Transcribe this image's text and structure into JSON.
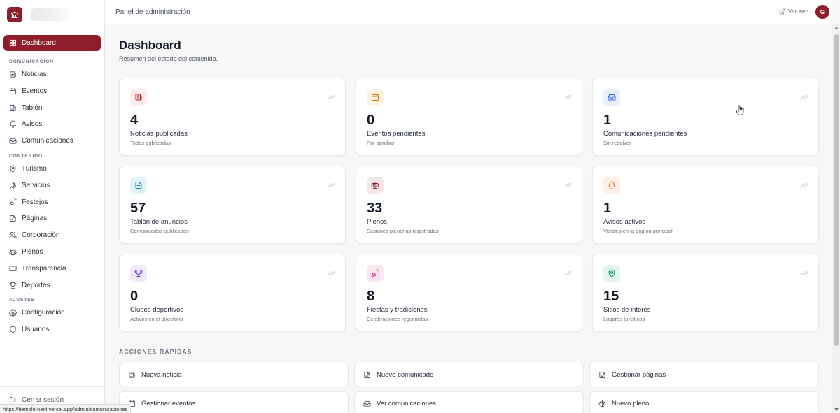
{
  "header": {
    "title": "Panel de administración",
    "view_site": "Ver web",
    "avatar_initial": "G"
  },
  "sidebar": {
    "dashboard": "Dashboard",
    "sections": [
      {
        "title": "COMUNICACIÓN",
        "items": [
          {
            "label": "Noticias",
            "icon": "newspaper-icon"
          },
          {
            "label": "Eventos",
            "icon": "calendar-icon"
          },
          {
            "label": "Tablón",
            "icon": "document-icon"
          },
          {
            "label": "Avisos",
            "icon": "bell-icon"
          },
          {
            "label": "Comunicaciones",
            "icon": "inbox-icon"
          }
        ]
      },
      {
        "title": "CONTENIDO",
        "items": [
          {
            "label": "Turismo",
            "icon": "map-pin-icon"
          },
          {
            "label": "Servicios",
            "icon": "wrench-icon"
          },
          {
            "label": "Festejos",
            "icon": "party-popper-icon"
          },
          {
            "label": "Páginas",
            "icon": "file-icon"
          },
          {
            "label": "Corporación",
            "icon": "users-icon"
          },
          {
            "label": "Plenos",
            "icon": "scale-icon"
          },
          {
            "label": "Transparencia",
            "icon": "book-icon"
          },
          {
            "label": "Deportes",
            "icon": "trophy-icon"
          }
        ]
      },
      {
        "title": "AJUSTES",
        "items": [
          {
            "label": "Configuración",
            "icon": "gear-icon"
          },
          {
            "label": "Usuarios",
            "icon": "shield-icon"
          }
        ]
      }
    ],
    "logout": "Cerrar sesión"
  },
  "main": {
    "title": "Dashboard",
    "subtitle": "Resumen del estado del contenido.",
    "stats": [
      {
        "value": "4",
        "label": "Noticias publicadas",
        "sub": "Todas publicadas",
        "icon": "newspaper-icon",
        "color": "#b91c1c",
        "bg": "#fdecec"
      },
      {
        "value": "0",
        "label": "Eventos pendientes",
        "sub": "Por aprobar",
        "icon": "calendar-icon",
        "color": "#d97706",
        "bg": "#fdf3e3"
      },
      {
        "value": "1",
        "label": "Comunicaciones pendientes",
        "sub": "Sin resolver",
        "icon": "inbox-icon",
        "color": "#2563eb",
        "bg": "#e8f0fb"
      },
      {
        "value": "57",
        "label": "Tablón de anuncios",
        "sub": "Comunicados publicados",
        "icon": "document-icon",
        "color": "#0891b2",
        "bg": "#e3f4f7"
      },
      {
        "value": "33",
        "label": "Plenos",
        "sub": "Sesiones plenarias registradas",
        "icon": "scale-icon",
        "color": "#8f1d2b",
        "bg": "#f6e8ea"
      },
      {
        "value": "1",
        "label": "Avisos activos",
        "sub": "Visibles en la página principal",
        "icon": "bell-icon",
        "color": "#ea580c",
        "bg": "#fdefe4"
      },
      {
        "value": "0",
        "label": "Clubes deportivos",
        "sub": "Activos en el directorio",
        "icon": "trophy-icon",
        "color": "#6d28d9",
        "bg": "#efe9fb"
      },
      {
        "value": "8",
        "label": "Fiestas y tradiciones",
        "sub": "Celebraciones registradas",
        "icon": "party-popper-icon",
        "color": "#db2777",
        "bg": "#fce8f1"
      },
      {
        "value": "15",
        "label": "Sitios de interés",
        "sub": "Lugares turísticos",
        "icon": "map-pin-icon",
        "color": "#059669",
        "bg": "#e4f5ee"
      }
    ],
    "quick_actions_title": "ACCIONES RÁPIDAS",
    "quick_actions": [
      {
        "label": "Nueva noticia",
        "icon": "newspaper-icon"
      },
      {
        "label": "Nuevo comunicado",
        "icon": "document-icon"
      },
      {
        "label": "Gestionar páginas",
        "icon": "file-icon"
      },
      {
        "label": "Gestionar eventos",
        "icon": "calendar-icon"
      },
      {
        "label": "Ver comunicaciones",
        "icon": "inbox-icon"
      },
      {
        "label": "Nuevo pleno",
        "icon": "scale-icon"
      }
    ]
  },
  "statusbar": {
    "url": "https://tiemblo-next.vercel.app/admin/comunicaciones"
  }
}
